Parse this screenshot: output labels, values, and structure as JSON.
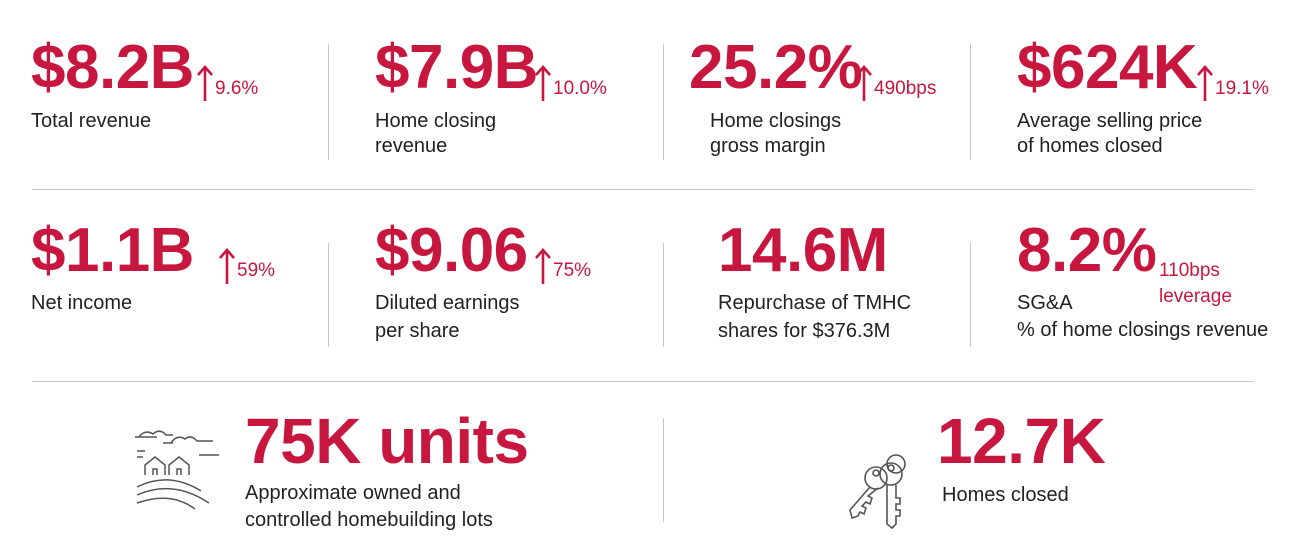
{
  "colors": {
    "accent": "#c8173f",
    "text": "#222222",
    "divider": "#c9c9c9"
  },
  "row1": [
    {
      "value": "$8.2B",
      "change": "9.6%",
      "label_line1": "Total revenue",
      "label_line2": ""
    },
    {
      "value": "$7.9B",
      "change": "10.0%",
      "label_line1": "Home closing",
      "label_line2": "revenue"
    },
    {
      "value": "25.2%",
      "change": "490bps",
      "label_line1": "Home closings",
      "label_line2": "gross margin"
    },
    {
      "value": "$624K",
      "change": "19.1%",
      "label_line1": "Average selling price",
      "label_line2": "of homes closed"
    }
  ],
  "row2": [
    {
      "value": "$1.1B",
      "change": "59%",
      "label_line1": "Net income",
      "label_line2": ""
    },
    {
      "value": "$9.06",
      "change": "75%",
      "label_line1": "Diluted earnings",
      "label_line2": "per share"
    },
    {
      "value": "14.6M",
      "change": "",
      "label_line1": "Repurchase of TMHC",
      "label_line2": "shares for $376.3M"
    },
    {
      "value": "8.2%",
      "change_line1": "110bps",
      "change_line2": "leverage",
      "label_line1": "SG&A",
      "label_line2": "% of home closings revenue"
    }
  ],
  "row3": [
    {
      "icon": "homebuilding-lots-icon",
      "value": "75K units",
      "label_line1": "Approximate owned and",
      "label_line2": "controlled homebuilding lots"
    },
    {
      "icon": "house-keys-icon",
      "value": "12.7K",
      "label_line1": "Homes closed",
      "label_line2": ""
    }
  ]
}
